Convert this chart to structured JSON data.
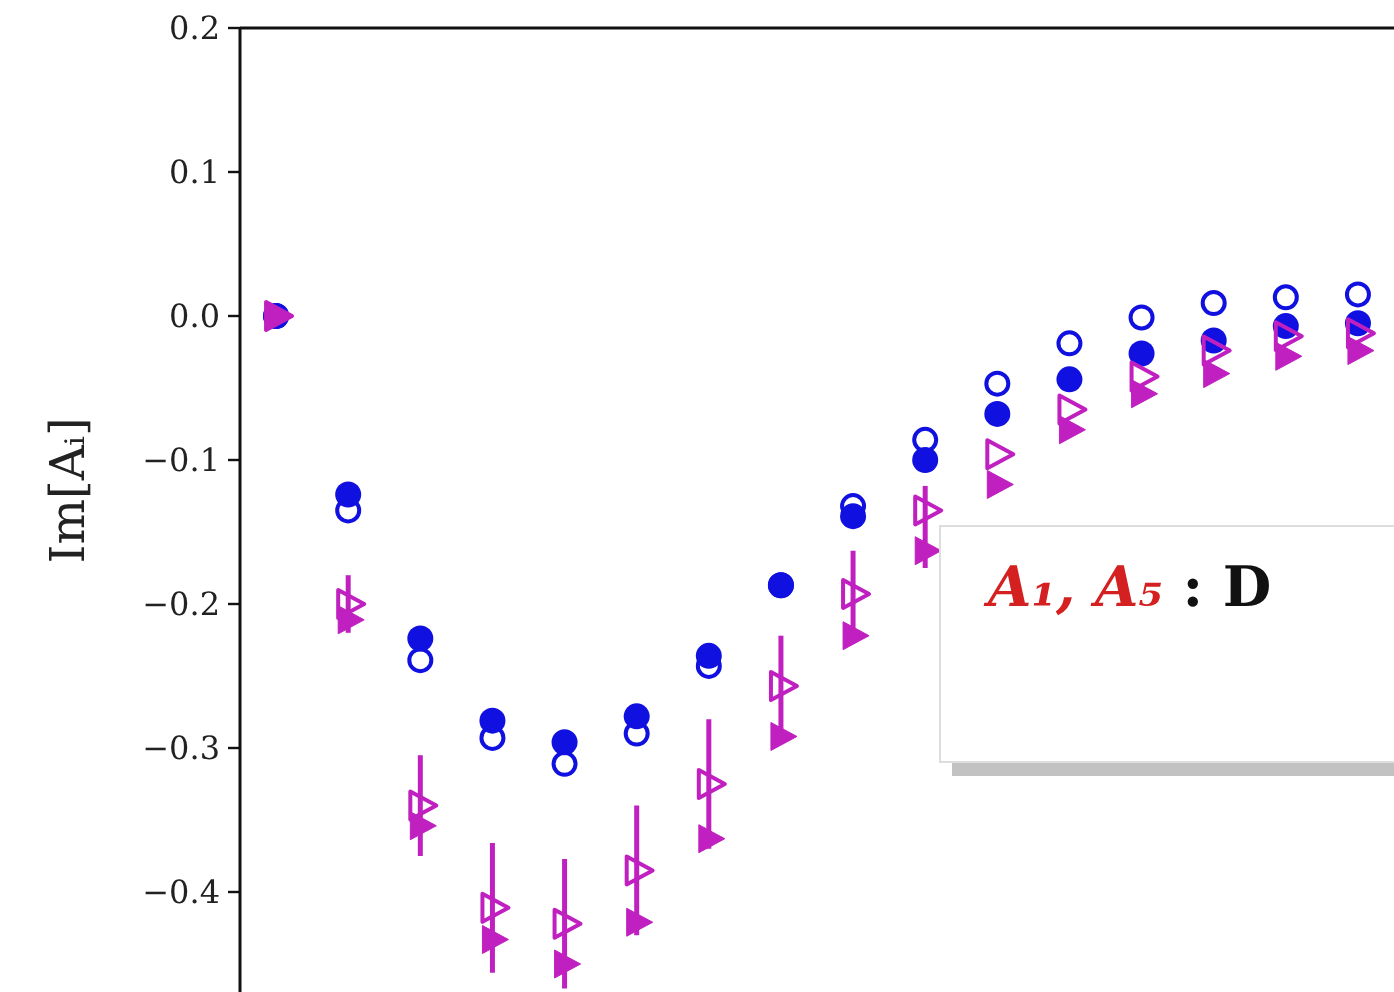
{
  "chart_data": {
    "type": "scatter",
    "ylabel": "Im[Aᵢ]",
    "categories": [
      null,
      null,
      null,
      null,
      null,
      null,
      null,
      null,
      null,
      null,
      null,
      null,
      null,
      null,
      null,
      null
    ],
    "ylim": [
      -0.47,
      0.2
    ],
    "yticks": [
      {
        "value": 0.2,
        "label": "0.2"
      },
      {
        "value": 0.1,
        "label": "0.1"
      },
      {
        "value": 0,
        "label": "0.0"
      },
      {
        "value": -0.1,
        "label": "−0.1"
      },
      {
        "value": -0.2,
        "label": "−0.2"
      },
      {
        "value": -0.3,
        "label": "−0.3"
      },
      {
        "value": -0.4,
        "label": "−0.4"
      }
    ],
    "grid": false,
    "tick_labels": "y",
    "series": [
      {
        "color": "#1010e0",
        "marker": "circle",
        "values": [
          0,
          -0.135,
          -0.239,
          -0.293,
          -0.311,
          -0.29,
          -0.243,
          -0.187,
          -0.132,
          -0.086,
          -0.047,
          -0.019,
          -0.001,
          0.009,
          0.013,
          0.015
        ]
      },
      {
        "color": "#1010e0",
        "marker": "circle",
        "values": [
          0,
          -0.124,
          -0.224,
          -0.281,
          -0.296,
          -0.278,
          -0.236,
          -0.187,
          -0.139,
          -0.1,
          -0.068,
          -0.044,
          -0.026,
          -0.017,
          -0.007,
          -0.005
        ]
      },
      {
        "color": "#c020c0",
        "marker": "triangle",
        "values": [
          0,
          -0.2,
          -0.34,
          -0.411,
          -0.422,
          -0.385,
          -0.325,
          -0.257,
          -0.193,
          -0.135,
          -0.096,
          -0.065,
          -0.042,
          -0.024,
          -0.014,
          -0.012
        ],
        "errors": [
          null,
          0.02,
          0.035,
          0.045,
          0.045,
          0.045,
          0.045,
          0.035,
          0.03,
          [
            -0.175,
            -0.118
          ],
          null,
          null,
          null,
          null,
          null,
          null
        ]
      },
      {
        "color": "#c020c0",
        "marker": "triangle",
        "values": [
          0,
          -0.211,
          -0.354,
          -0.433,
          -0.45,
          -0.421,
          -0.363,
          -0.292,
          -0.222,
          -0.163,
          -0.117,
          -0.079,
          -0.054,
          -0.04,
          -0.028,
          -0.024
        ]
      }
    ],
    "annotations": [
      "A₁, A₅ : D"
    ]
  }
}
